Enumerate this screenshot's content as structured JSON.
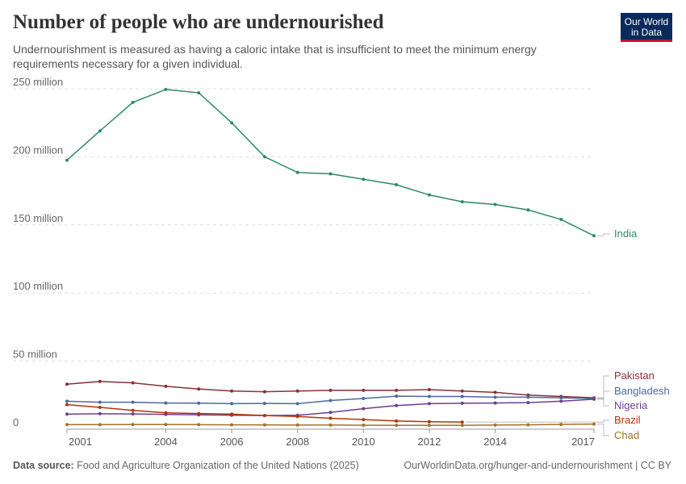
{
  "header": {
    "title": "Number of people who are undernourished",
    "subtitle": "Undernourishment is measured as having a caloric intake that is insufficient to meet the minimum energy requirements necessary for a given individual."
  },
  "logo": {
    "line1": "Our World",
    "line2": "in Data",
    "bg_color": "#0b2a5b",
    "accent_color": "#c8102e"
  },
  "footer": {
    "source_label": "Data source:",
    "source_text": "Food and Agriculture Organization of the United Nations (2025)",
    "url": "OurWorldinData.org/hunger-and-undernourishment | CC BY"
  },
  "chart_data": {
    "type": "line",
    "title": "Number of people who are undernourished",
    "xlim": [
      2001,
      2017
    ],
    "ylim": [
      0,
      250000000
    ],
    "grid": true,
    "y_ticks": [
      {
        "value": 0,
        "label": "0"
      },
      {
        "value": 50000000,
        "label": "50 million"
      },
      {
        "value": 100000000,
        "label": "100 million"
      },
      {
        "value": 150000000,
        "label": "150 million"
      },
      {
        "value": 200000000,
        "label": "200 million"
      },
      {
        "value": 250000000,
        "label": "250 million"
      }
    ],
    "x_ticks": [
      {
        "value": 2001,
        "label": "2001"
      },
      {
        "value": 2004,
        "label": "2004"
      },
      {
        "value": 2006,
        "label": "2006"
      },
      {
        "value": 2008,
        "label": "2008"
      },
      {
        "value": 2010,
        "label": "2010"
      },
      {
        "value": 2012,
        "label": "2012"
      },
      {
        "value": 2014,
        "label": "2014"
      },
      {
        "value": 2017,
        "label": "2017"
      }
    ],
    "series": [
      {
        "name": "India",
        "color": "#2d8a6a",
        "x": [
          2001,
          2002,
          2003,
          2004,
          2005,
          2006,
          2007,
          2008,
          2009,
          2010,
          2011,
          2012,
          2013,
          2014,
          2015,
          2016,
          2017
        ],
        "values": [
          197500000,
          219000000,
          240000000,
          249500000,
          247000000,
          225000000,
          200000000,
          188500000,
          187500000,
          183500000,
          179500000,
          172000000,
          167000000,
          165000000,
          161000000,
          154000000,
          142000000
        ]
      },
      {
        "name": "Pakistan",
        "color": "#883039",
        "x": [
          2001,
          2002,
          2003,
          2004,
          2005,
          2006,
          2007,
          2008,
          2009,
          2010,
          2011,
          2012,
          2013,
          2014,
          2015,
          2016,
          2017
        ],
        "values": [
          33000000,
          35000000,
          34000000,
          31500000,
          29500000,
          28000000,
          27500000,
          28000000,
          28500000,
          28500000,
          28500000,
          29000000,
          28000000,
          27000000,
          25000000,
          24000000,
          23000000
        ]
      },
      {
        "name": "Bangladesh",
        "color": "#4c6a9c",
        "x": [
          2001,
          2002,
          2003,
          2004,
          2005,
          2006,
          2007,
          2008,
          2009,
          2010,
          2011,
          2012,
          2013,
          2014,
          2015,
          2016,
          2017
        ],
        "values": [
          20500000,
          19800000,
          19800000,
          19200000,
          19100000,
          18700000,
          18900000,
          18700000,
          21000000,
          22500000,
          24200000,
          24000000,
          24000000,
          23500000,
          23500000,
          23000000,
          22500000
        ]
      },
      {
        "name": "Nigeria",
        "color": "#6d3e91",
        "x": [
          2001,
          2002,
          2003,
          2004,
          2005,
          2006,
          2007,
          2008,
          2009,
          2010,
          2011,
          2012,
          2013,
          2014,
          2015,
          2016,
          2017
        ],
        "values": [
          11000000,
          11300000,
          11200000,
          10800000,
          10500000,
          10200000,
          10000000,
          10200000,
          12300000,
          15000000,
          17300000,
          18700000,
          19000000,
          19200000,
          19500000,
          20500000,
          22000000
        ]
      },
      {
        "name": "Brazil",
        "color": "#b13507",
        "x": [
          2001,
          2002,
          2003,
          2004,
          2005,
          2006,
          2007,
          2008,
          2009,
          2010,
          2011,
          2012,
          2013
        ],
        "values": [
          18000000,
          16000000,
          13800000,
          12000000,
          11500000,
          11000000,
          10000000,
          9300000,
          8000000,
          7000000,
          6000000,
          5500000,
          5200000
        ]
      },
      {
        "name": "Chad",
        "color": "#a2742a",
        "x": [
          2001,
          2002,
          2003,
          2004,
          2005,
          2006,
          2007,
          2008,
          2009,
          2010,
          2011,
          2012,
          2013,
          2014,
          2015,
          2016,
          2017
        ],
        "values": [
          3300000,
          3300000,
          3400000,
          3400000,
          3300000,
          3200000,
          3100000,
          3000000,
          3000000,
          2900000,
          2800000,
          2800000,
          2800000,
          3000000,
          3200000,
          3500000,
          3700000
        ]
      }
    ]
  }
}
